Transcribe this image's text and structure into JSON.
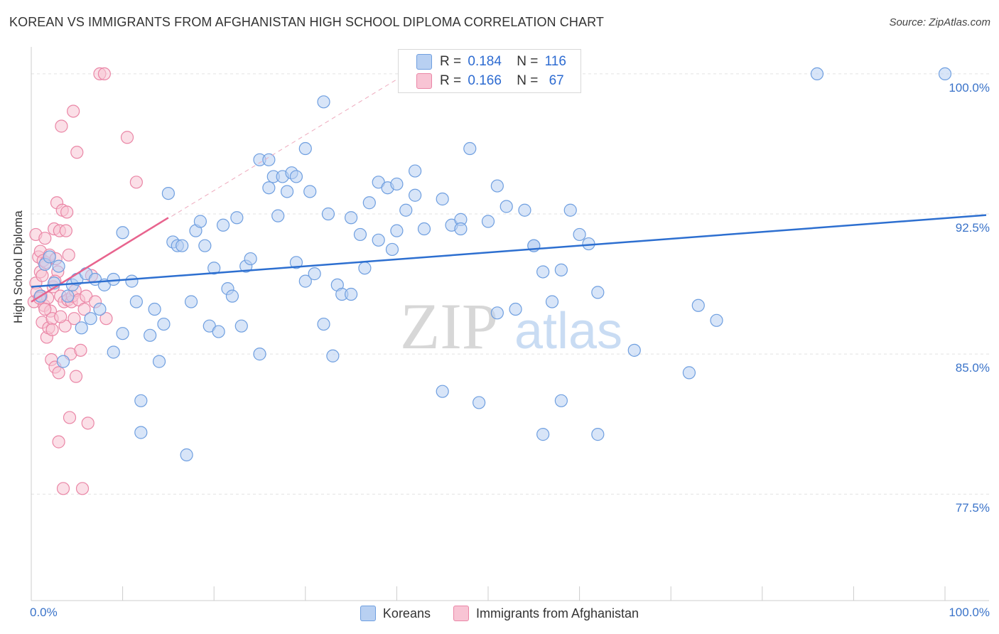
{
  "title": "KOREAN VS IMMIGRANTS FROM AFGHANISTAN HIGH SCHOOL DIPLOMA CORRELATION CHART",
  "source": "Source: ZipAtlas.com",
  "watermark": {
    "zip": "ZIP",
    "atlas": "atlas"
  },
  "colors": {
    "blue_fill": "#b8d0f2",
    "blue_stroke": "#6f9fe0",
    "blue_line": "#2d6fd0",
    "pink_fill": "#f8c4d4",
    "pink_stroke": "#ea86a6",
    "pink_line": "#e8648e",
    "grid": "#e2e2e2",
    "axis_text": "#3a73c9"
  },
  "stats": {
    "r_label": "R =",
    "n_label": "N =",
    "koreans": {
      "r": "0.184",
      "n": "116"
    },
    "afghan": {
      "r": "0.166",
      "n": "67"
    }
  },
  "legend": {
    "koreans": "Koreans",
    "afghan": "Immigrants from Afghanistan"
  },
  "chart_data": {
    "type": "scatter",
    "title": "KOREAN VS IMMIGRANTS FROM AFGHANISTAN HIGH SCHOOL DIPLOMA CORRELATION CHART",
    "xlabel": "",
    "ylabel": "High School Diploma",
    "xlim": [
      0,
      100
    ],
    "ylim": [
      71.8,
      101.1
    ],
    "y_ticks": [
      77.5,
      85.0,
      92.5,
      100.0
    ],
    "y_tick_labels": [
      "77.5%",
      "85.0%",
      "92.5%",
      "100.0%"
    ],
    "x_tick_labels": [
      "0.0%",
      "100.0%"
    ],
    "series": [
      {
        "name": "Koreans",
        "r": 0.184,
        "n": 116,
        "trend": {
          "x": [
            0,
            100
          ],
          "y": [
            88.6,
            92.4
          ]
        },
        "points": [
          [
            1,
            88.1
          ],
          [
            1.5,
            89.8
          ],
          [
            2,
            90.2
          ],
          [
            2.5,
            88.8
          ],
          [
            3,
            89.7
          ],
          [
            3.5,
            84.6
          ],
          [
            4,
            88.1
          ],
          [
            4.5,
            88.7
          ],
          [
            5,
            89.0
          ],
          [
            5.5,
            86.4
          ],
          [
            6,
            89.3
          ],
          [
            6.5,
            86.9
          ],
          [
            7,
            89.0
          ],
          [
            7.5,
            87.4
          ],
          [
            8,
            88.7
          ],
          [
            9,
            85.1
          ],
          [
            9,
            89.0
          ],
          [
            10,
            86.1
          ],
          [
            10,
            91.5
          ],
          [
            11,
            88.9
          ],
          [
            11.5,
            87.8
          ],
          [
            12,
            82.5
          ],
          [
            12,
            80.8
          ],
          [
            13,
            86.0
          ],
          [
            13.5,
            87.4
          ],
          [
            14,
            84.6
          ],
          [
            14.5,
            86.6
          ],
          [
            15,
            93.6
          ],
          [
            15.5,
            91.0
          ],
          [
            16,
            90.8
          ],
          [
            16.5,
            90.8
          ],
          [
            17,
            79.6
          ],
          [
            17.5,
            87.8
          ],
          [
            18,
            91.6
          ],
          [
            18.5,
            92.1
          ],
          [
            19,
            90.8
          ],
          [
            19.5,
            86.5
          ],
          [
            20,
            89.6
          ],
          [
            20.5,
            86.2
          ],
          [
            21,
            91.9
          ],
          [
            21.5,
            88.5
          ],
          [
            22,
            88.1
          ],
          [
            22.5,
            92.3
          ],
          [
            23,
            86.5
          ],
          [
            23.5,
            89.7
          ],
          [
            24,
            90.1
          ],
          [
            25,
            95.4
          ],
          [
            25,
            85.0
          ],
          [
            26,
            95.4
          ],
          [
            26,
            93.9
          ],
          [
            26.5,
            94.5
          ],
          [
            27,
            92.4
          ],
          [
            27.5,
            94.5
          ],
          [
            28,
            93.7
          ],
          [
            28.5,
            94.7
          ],
          [
            29,
            94.5
          ],
          [
            29,
            89.9
          ],
          [
            30,
            96.0
          ],
          [
            30,
            88.9
          ],
          [
            30.5,
            93.7
          ],
          [
            31,
            89.3
          ],
          [
            32,
            98.5
          ],
          [
            32,
            86.6
          ],
          [
            32.5,
            92.5
          ],
          [
            33,
            84.9
          ],
          [
            33.5,
            88.7
          ],
          [
            34,
            88.2
          ],
          [
            35,
            92.3
          ],
          [
            35,
            88.2
          ],
          [
            36,
            91.4
          ],
          [
            36.5,
            89.6
          ],
          [
            37,
            93.1
          ],
          [
            38,
            94.2
          ],
          [
            38,
            91.1
          ],
          [
            39,
            93.9
          ],
          [
            39.5,
            90.6
          ],
          [
            40,
            94.1
          ],
          [
            40,
            91.6
          ],
          [
            41,
            92.7
          ],
          [
            42,
            94.8
          ],
          [
            42,
            93.5
          ],
          [
            43,
            91.7
          ],
          [
            45,
            83.0
          ],
          [
            45,
            93.3
          ],
          [
            46,
            91.9
          ],
          [
            47,
            92.2
          ],
          [
            47,
            91.7
          ],
          [
            48,
            96.0
          ],
          [
            49,
            82.4
          ],
          [
            50,
            92.1
          ],
          [
            51,
            94.0
          ],
          [
            51,
            87.2
          ],
          [
            52,
            92.9
          ],
          [
            53,
            87.4
          ],
          [
            54,
            92.7
          ],
          [
            55,
            90.8
          ],
          [
            55,
            90.8
          ],
          [
            56,
            80.7
          ],
          [
            56,
            89.4
          ],
          [
            57,
            87.8
          ],
          [
            58,
            82.5
          ],
          [
            58,
            89.5
          ],
          [
            59,
            92.7
          ],
          [
            60,
            91.4
          ],
          [
            61,
            90.9
          ],
          [
            62,
            80.7
          ],
          [
            62,
            88.3
          ],
          [
            66,
            85.2
          ],
          [
            72,
            84.0
          ],
          [
            73,
            87.6
          ],
          [
            75,
            86.8
          ],
          [
            86,
            100.0
          ],
          [
            100,
            100.0
          ]
        ]
      },
      {
        "name": "Immigrants from Afghanistan",
        "r": 0.166,
        "n": 67,
        "trend": {
          "x": [
            0,
            15
          ],
          "y": [
            87.8,
            92.3
          ]
        },
        "trend_extended": {
          "x": [
            0,
            41
          ],
          "y": [
            87.8,
            100.0
          ]
        },
        "points": [
          [
            0.3,
            87.8
          ],
          [
            0.5,
            91.4
          ],
          [
            0.5,
            88.8
          ],
          [
            0.6,
            88.3
          ],
          [
            0.8,
            90.2
          ],
          [
            1,
            90.5
          ],
          [
            1,
            89.4
          ],
          [
            1.1,
            88.1
          ],
          [
            1.2,
            86.7
          ],
          [
            1.3,
            90.0
          ],
          [
            1.4,
            87.6
          ],
          [
            1.5,
            91.2
          ],
          [
            1.6,
            89.9
          ],
          [
            1.7,
            85.9
          ],
          [
            1.8,
            88.0
          ],
          [
            1.9,
            86.4
          ],
          [
            2,
            90.3
          ],
          [
            2.1,
            87.3
          ],
          [
            2.2,
            84.7
          ],
          [
            2.3,
            86.9
          ],
          [
            2.4,
            88.6
          ],
          [
            2.5,
            91.7
          ],
          [
            2.6,
            84.3
          ],
          [
            2.7,
            90.1
          ],
          [
            2.8,
            93.1
          ],
          [
            2.9,
            89.4
          ],
          [
            3,
            84.0
          ],
          [
            3,
            80.3
          ],
          [
            3.1,
            91.6
          ],
          [
            3.2,
            88.1
          ],
          [
            3.3,
            97.2
          ],
          [
            3.4,
            92.7
          ],
          [
            3.5,
            77.8
          ],
          [
            3.6,
            87.8
          ],
          [
            3.7,
            86.5
          ],
          [
            3.8,
            91.6
          ],
          [
            3.9,
            92.6
          ],
          [
            4,
            87.9
          ],
          [
            4.1,
            90.3
          ],
          [
            4.2,
            81.6
          ],
          [
            4.3,
            85.0
          ],
          [
            4.4,
            87.8
          ],
          [
            4.5,
            88.1
          ],
          [
            4.6,
            98.0
          ],
          [
            4.7,
            86.9
          ],
          [
            4.8,
            88.4
          ],
          [
            4.9,
            83.8
          ],
          [
            5,
            95.8
          ],
          [
            5.2,
            87.9
          ],
          [
            5.4,
            85.2
          ],
          [
            5.6,
            77.8
          ],
          [
            5.8,
            87.4
          ],
          [
            6,
            88.1
          ],
          [
            6.2,
            81.3
          ],
          [
            6.6,
            89.2
          ],
          [
            7,
            87.8
          ],
          [
            7.5,
            100.0
          ],
          [
            8,
            100.0
          ],
          [
            8.2,
            86.9
          ],
          [
            10.5,
            96.6
          ],
          [
            11.5,
            94.2
          ],
          [
            0.9,
            88.0
          ],
          [
            1.2,
            89.2
          ],
          [
            1.5,
            87.4
          ],
          [
            2.3,
            86.3
          ],
          [
            2.6,
            88.9
          ],
          [
            3.2,
            87.0
          ]
        ]
      }
    ]
  }
}
